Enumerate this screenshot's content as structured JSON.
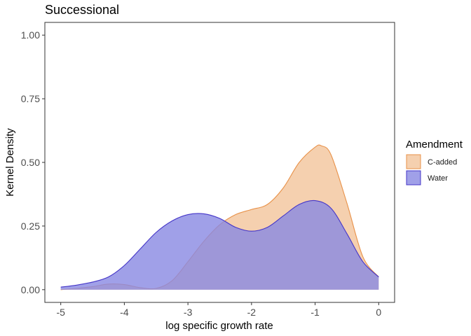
{
  "chart_data": {
    "type": "area",
    "title": "Successional",
    "xlabel": "log specific growth rate",
    "ylabel": "Kernel Density",
    "xlim": [
      -5.25,
      0.25
    ],
    "ylim": [
      -0.05,
      1.05
    ],
    "xticks": [
      -5,
      -4,
      -3,
      -2,
      -1,
      0
    ],
    "xtick_labels": [
      "-5",
      "-4",
      "-3",
      "-2",
      "-1",
      "0"
    ],
    "yticks": [
      0.0,
      0.25,
      0.5,
      0.75,
      1.0
    ],
    "ytick_labels": [
      "0.00",
      "0.25",
      "0.50",
      "0.75",
      "1.00"
    ],
    "grid": false,
    "legend": {
      "title": "Amendment",
      "position": "right",
      "entries": [
        "C-added",
        "Water"
      ]
    },
    "series": [
      {
        "name": "C-added",
        "fill": "#f3c49b",
        "stroke": "#e8924a",
        "x": [
          -5.0,
          -4.75,
          -4.5,
          -4.25,
          -4.0,
          -3.75,
          -3.5,
          -3.25,
          -3.0,
          -2.75,
          -2.5,
          -2.25,
          -2.0,
          -1.75,
          -1.5,
          -1.25,
          -1.0,
          -0.9,
          -0.75,
          -0.5,
          -0.25,
          0.0
        ],
        "y": [
          0.0,
          0.005,
          0.012,
          0.022,
          0.02,
          0.008,
          0.005,
          0.035,
          0.11,
          0.19,
          0.255,
          0.295,
          0.315,
          0.335,
          0.4,
          0.5,
          0.56,
          0.565,
          0.53,
          0.34,
          0.13,
          0.05
        ]
      },
      {
        "name": "Water",
        "fill": "#8888e2",
        "stroke": "#4536c8",
        "x": [
          -5.0,
          -4.75,
          -4.5,
          -4.25,
          -4.0,
          -3.75,
          -3.5,
          -3.25,
          -3.0,
          -2.75,
          -2.5,
          -2.25,
          -2.0,
          -1.75,
          -1.5,
          -1.25,
          -1.0,
          -0.75,
          -0.5,
          -0.25,
          0.0
        ],
        "y": [
          0.01,
          0.018,
          0.03,
          0.05,
          0.095,
          0.16,
          0.225,
          0.27,
          0.295,
          0.298,
          0.28,
          0.245,
          0.23,
          0.245,
          0.29,
          0.335,
          0.35,
          0.32,
          0.22,
          0.11,
          0.05
        ]
      }
    ]
  }
}
